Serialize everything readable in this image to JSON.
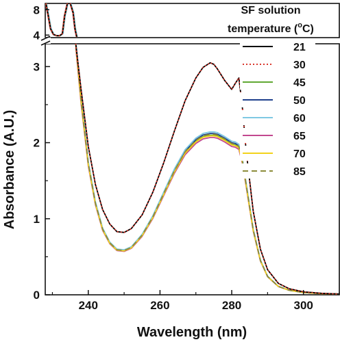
{
  "chart_data": {
    "type": "line",
    "xlabel": "Wavelength (nm)",
    "ylabel": "Absorbance (A.U.)",
    "xlim": [
      228,
      310
    ],
    "ylim_lower": [
      0,
      3.3
    ],
    "ylim_upper": [
      3.6,
      9
    ],
    "axis_break": true,
    "x_ticks": [
      "240",
      "260",
      "280",
      "300"
    ],
    "y_ticks_lower": [
      "0",
      "1",
      "2",
      "3"
    ],
    "y_ticks_upper": [
      "4",
      "8"
    ],
    "legend": {
      "title_line1": "SF solution",
      "title_line2": "temperature (",
      "title_sup": "o",
      "title_unit": "C)",
      "placement": "top-right"
    },
    "series": [
      {
        "name": "21",
        "color": "#000000",
        "dash": "solid",
        "group": "high"
      },
      {
        "name": "30",
        "color": "#d9362b",
        "dash": "dotted",
        "group": "high"
      },
      {
        "name": "45",
        "color": "#5fa832",
        "dash": "solid",
        "group": "low",
        "offset": 0.0
      },
      {
        "name": "50",
        "color": "#1d3f8c",
        "dash": "solid",
        "group": "low",
        "offset": 0.02
      },
      {
        "name": "60",
        "color": "#7ec8e3",
        "dash": "solid",
        "group": "low",
        "offset": 0.04
      },
      {
        "name": "65",
        "color": "#c2478f",
        "dash": "solid",
        "group": "low",
        "offset": -0.03
      },
      {
        "name": "70",
        "color": "#f2d21a",
        "dash": "solid",
        "group": "low",
        "offset": -0.01
      },
      {
        "name": "85",
        "color": "#8c8c3a",
        "dash": "dashed",
        "group": "low",
        "offset": 0.01
      }
    ],
    "curve_high": {
      "x": [
        236.5,
        238,
        240,
        242,
        244,
        246,
        248,
        250,
        252,
        255,
        258,
        261,
        264,
        267,
        270,
        272,
        274,
        275,
        276,
        278,
        280,
        281,
        282,
        283,
        284,
        286,
        288,
        290,
        293,
        296,
        300,
        305,
        310
      ],
      "y": [
        3.3,
        2.7,
        1.95,
        1.45,
        1.12,
        0.93,
        0.83,
        0.82,
        0.87,
        1.05,
        1.35,
        1.73,
        2.15,
        2.55,
        2.85,
        2.99,
        3.05,
        3.03,
        2.97,
        2.82,
        2.7,
        2.78,
        2.85,
        2.45,
        1.9,
        1.1,
        0.6,
        0.33,
        0.15,
        0.08,
        0.04,
        0.02,
        0.01
      ]
    },
    "curve_low": {
      "x": [
        236.5,
        238,
        240,
        242,
        244,
        246,
        248,
        250,
        252,
        255,
        258,
        261,
        264,
        267,
        270,
        272,
        274,
        275,
        276,
        278,
        280,
        281,
        282,
        283,
        284,
        286,
        288,
        290,
        293,
        296,
        300,
        305,
        310
      ],
      "y": [
        3.3,
        2.55,
        1.72,
        1.2,
        0.86,
        0.68,
        0.59,
        0.58,
        0.62,
        0.78,
        1.02,
        1.32,
        1.62,
        1.87,
        2.02,
        2.08,
        2.1,
        2.1,
        2.09,
        2.04,
        1.98,
        1.97,
        1.94,
        1.75,
        1.45,
        0.85,
        0.45,
        0.24,
        0.11,
        0.06,
        0.03,
        0.015,
        0.01
      ]
    },
    "upper_segment": {
      "x": [
        228.2,
        228.8,
        229.5,
        230.3,
        231.2,
        232.0,
        232.8,
        233.4,
        234.2,
        235.0,
        235.8,
        236.3,
        236.8
      ],
      "y": [
        9,
        7.2,
        5.0,
        4.1,
        3.9,
        3.9,
        4.2,
        7.0,
        9,
        9,
        7.5,
        5.0,
        3.7
      ]
    }
  }
}
